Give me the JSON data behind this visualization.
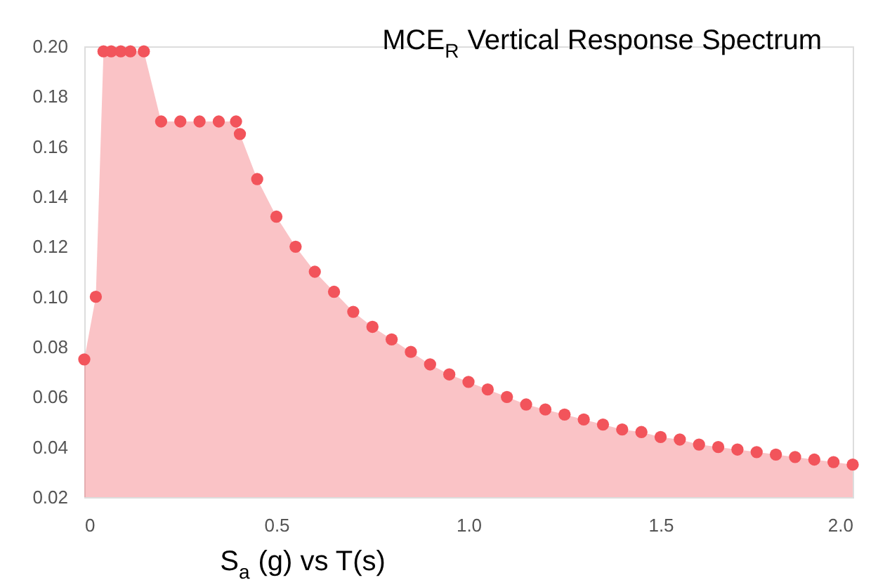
{
  "chart_data": {
    "type": "area",
    "title": "MCE$_{R}$ Vertical Response Spectrum",
    "xlabel": "S$_{a}$(g) vs T(s)",
    "x": [
      0,
      0.03,
      0.05,
      0.07,
      0.095,
      0.12,
      0.155,
      0.2,
      0.25,
      0.3,
      0.35,
      0.395,
      0.405,
      0.45,
      0.5,
      0.55,
      0.6,
      0.65,
      0.7,
      0.75,
      0.8,
      0.85,
      0.9,
      0.95,
      1.0,
      1.05,
      1.1,
      1.15,
      1.2,
      1.25,
      1.3,
      1.35,
      1.4,
      1.45,
      1.5,
      1.55,
      1.6,
      1.65,
      1.7,
      1.75,
      1.8,
      1.85,
      1.9,
      1.95,
      2.0
    ],
    "series": [
      {
        "color": "#f2545b",
        "values": [
          0.075,
          0.1,
          0.198,
          0.198,
          0.198,
          0.198,
          0.198,
          0.17,
          0.17,
          0.17,
          0.17,
          0.17,
          0.165,
          0.147,
          0.132,
          0.12,
          0.11,
          0.102,
          0.094,
          0.088,
          0.083,
          0.078,
          0.073,
          0.069,
          0.066,
          0.063,
          0.06,
          0.057,
          0.055,
          0.053,
          0.051,
          0.049,
          0.047,
          0.046,
          0.044,
          0.043,
          0.041,
          0.04,
          0.039,
          0.038,
          0.037,
          0.036,
          0.035,
          0.034,
          0.033
        ]
      }
    ],
    "xlim": [
      0,
      2.0
    ],
    "ylim": [
      0.02,
      0.2
    ],
    "xticks": [
      0,
      0.5,
      {
        "value": 1,
        "label": "1.0"
      },
      1.5,
      {
        "value": 2,
        "label": "2.0"
      }
    ],
    "yticks": [
      {
        "value": 0.02,
        "label": "0.02"
      },
      {
        "value": 0.04,
        "label": "0.04"
      },
      {
        "value": 0.06,
        "label": "0.06"
      },
      {
        "value": 0.08,
        "label": "0.08"
      },
      {
        "value": 0.1,
        "label": "0.10"
      },
      {
        "value": 0.12,
        "label": "0.12"
      },
      {
        "value": 0.14,
        "label": "0.14"
      },
      {
        "value": 0.16,
        "label": "0.16"
      },
      {
        "value": 0.18,
        "label": "0.18"
      },
      {
        "value": 0.2,
        "label": "0.20"
      }
    ],
    "marker": "circle",
    "grid": false
  }
}
